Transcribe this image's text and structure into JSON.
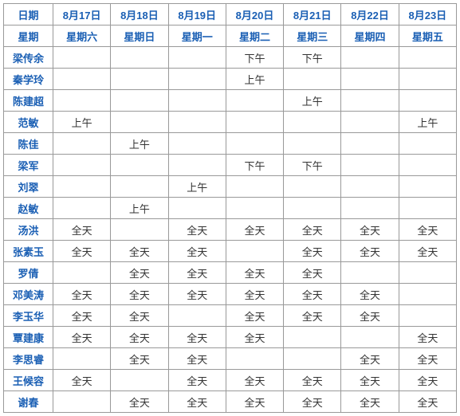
{
  "table": {
    "header_color": "#1a5fb4",
    "name_color": "#1a5fb4",
    "value_color": "#333333",
    "border_color": "#999999",
    "background_color": "#ffffff",
    "font_size": 13,
    "col_label_date": "日期",
    "col_label_weekday": "星期",
    "dates": [
      "8月17日",
      "8月18日",
      "8月19日",
      "8月20日",
      "8月21日",
      "8月22日",
      "8月23日"
    ],
    "weekdays": [
      "星期六",
      "星期日",
      "星期一",
      "星期二",
      "星期三",
      "星期四",
      "星期五"
    ],
    "rows": [
      {
        "name": "梁传余",
        "cells": [
          "",
          "",
          "",
          "下午",
          "下午",
          "",
          ""
        ]
      },
      {
        "name": "秦学玲",
        "cells": [
          "",
          "",
          "",
          "上午",
          "",
          "",
          ""
        ]
      },
      {
        "name": "陈建超",
        "cells": [
          "",
          "",
          "",
          "",
          "上午",
          "",
          ""
        ]
      },
      {
        "name": "范敏",
        "cells": [
          "上午",
          "",
          "",
          "",
          "",
          "",
          "上午"
        ]
      },
      {
        "name": "陈佳",
        "cells": [
          "",
          "上午",
          "",
          "",
          "",
          "",
          ""
        ]
      },
      {
        "name": "梁军",
        "cells": [
          "",
          "",
          "",
          "下午",
          "下午",
          "",
          ""
        ]
      },
      {
        "name": "刘翠",
        "cells": [
          "",
          "",
          "上午",
          "",
          "",
          "",
          ""
        ]
      },
      {
        "name": "赵敏",
        "cells": [
          "",
          "上午",
          "",
          "",
          "",
          "",
          ""
        ]
      },
      {
        "name": "汤洪",
        "cells": [
          "全天",
          "",
          "全天",
          "全天",
          "全天",
          "全天",
          "全天"
        ]
      },
      {
        "name": "张素玉",
        "cells": [
          "全天",
          "全天",
          "全天",
          "",
          "全天",
          "全天",
          "全天"
        ]
      },
      {
        "name": "罗倩",
        "cells": [
          "",
          "全天",
          "全天",
          "全天",
          "全天",
          "",
          ""
        ]
      },
      {
        "name": "邓美涛",
        "cells": [
          "全天",
          "全天",
          "全天",
          "全天",
          "全天",
          "全天",
          ""
        ]
      },
      {
        "name": "李玉华",
        "cells": [
          "全天",
          "全天",
          "",
          "全天",
          "全天",
          "全天",
          ""
        ]
      },
      {
        "name": "覃建康",
        "cells": [
          "全天",
          "全天",
          "全天",
          "全天",
          "",
          "",
          "全天"
        ]
      },
      {
        "name": "李思睿",
        "cells": [
          "",
          "全天",
          "全天",
          "",
          "",
          "全天",
          "全天"
        ]
      },
      {
        "name": "王候容",
        "cells": [
          "全天",
          "",
          "全天",
          "全天",
          "全天",
          "全天",
          "全天"
        ]
      },
      {
        "name": "谢春",
        "cells": [
          "",
          "全天",
          "全天",
          "全天",
          "全天",
          "全天",
          "全天"
        ]
      }
    ]
  }
}
